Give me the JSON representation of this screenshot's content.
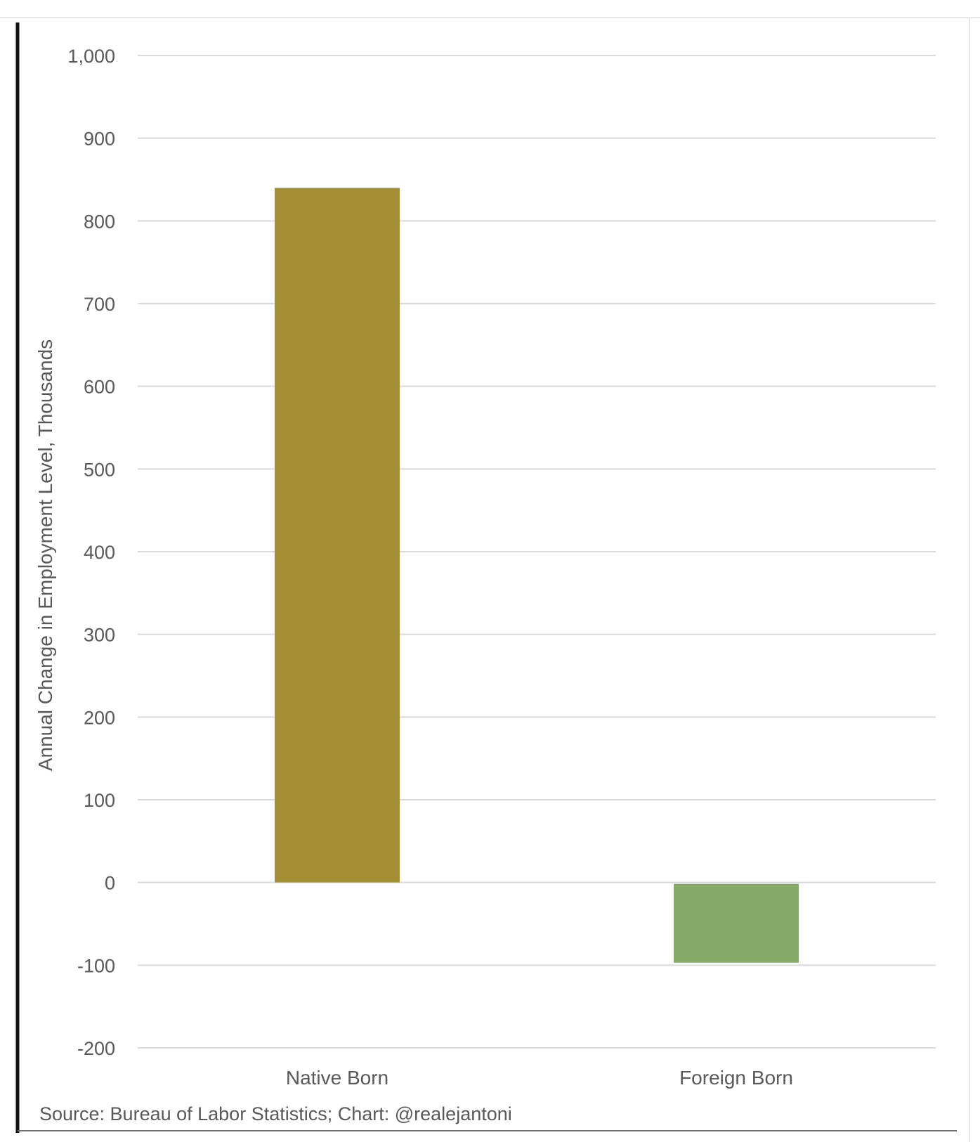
{
  "chart_data": {
    "type": "bar",
    "categories": [
      "Native Born",
      "Foreign Born"
    ],
    "values": [
      840,
      -97
    ],
    "colors": [
      "#A48F37",
      "#86AB69"
    ],
    "ylabel": "Annual Change in Employment Level, Thousands",
    "xlabel": "",
    "ylim": [
      -200,
      1000
    ],
    "yticks": [
      1000,
      900,
      800,
      700,
      600,
      500,
      400,
      300,
      200,
      100,
      0,
      -100,
      -200
    ],
    "ytick_labels": [
      "1,000",
      "900",
      "800",
      "700",
      "600",
      "500",
      "400",
      "300",
      "200",
      "100",
      "0",
      "-100",
      "-200"
    ],
    "grid": true,
    "legend": "none",
    "source": "Source: Bureau of Labor Statistics; Chart: @realejantoni"
  }
}
